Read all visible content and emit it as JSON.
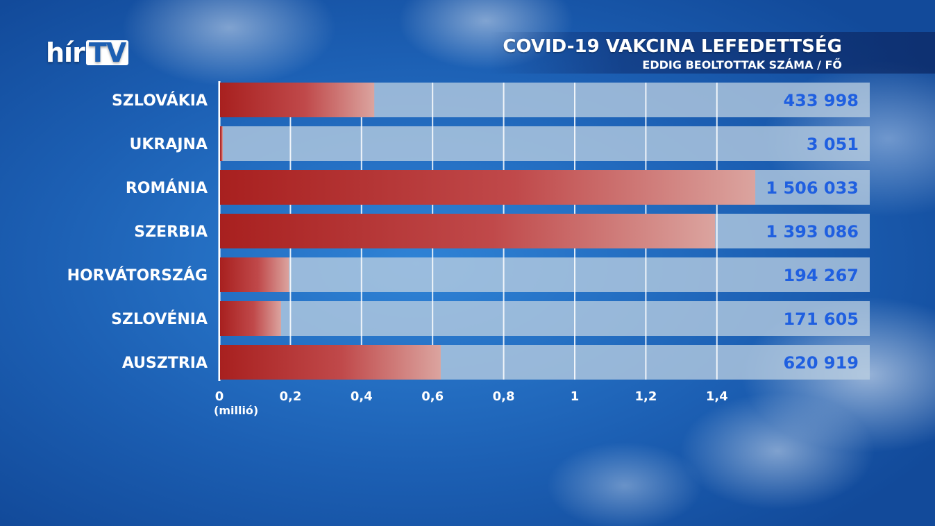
{
  "logo": {
    "brand": "hír",
    "tv": "TV"
  },
  "header": {
    "title": "COVID-19 VAKCINA LEFEDETTSÉG",
    "subtitle": "EDDIG BEOLTOTTAK SZÁMA / FŐ"
  },
  "colors": {
    "bar": "#b3292c",
    "track": "#b9cde0",
    "value_text": "#1f5fe0"
  },
  "chart_data": {
    "type": "bar",
    "orientation": "horizontal",
    "categories": [
      "SZLOVÁKIA",
      "UKRAJNA",
      "ROMÁNIA",
      "SZERBIA",
      "HORVÁTORSZÁG",
      "SZLOVÉNIA",
      "AUSZTRIA"
    ],
    "values": [
      433998,
      3051,
      1506033,
      1393086,
      194267,
      171605,
      620919
    ],
    "value_labels": [
      "433 998",
      "3 051",
      "1 506 033",
      "1 393 086",
      "194 267",
      "171 605",
      "620 919"
    ],
    "x_ticks": [
      0,
      0.2,
      0.4,
      0.6,
      0.8,
      1,
      1.2,
      1.4
    ],
    "x_tick_labels": [
      "0",
      "0,2",
      "0,4",
      "0,6",
      "0,8",
      "1",
      "1,2",
      "1,4"
    ],
    "xlabel": "(millió)",
    "xlim": [
      0,
      1.83
    ],
    "grid": true
  }
}
